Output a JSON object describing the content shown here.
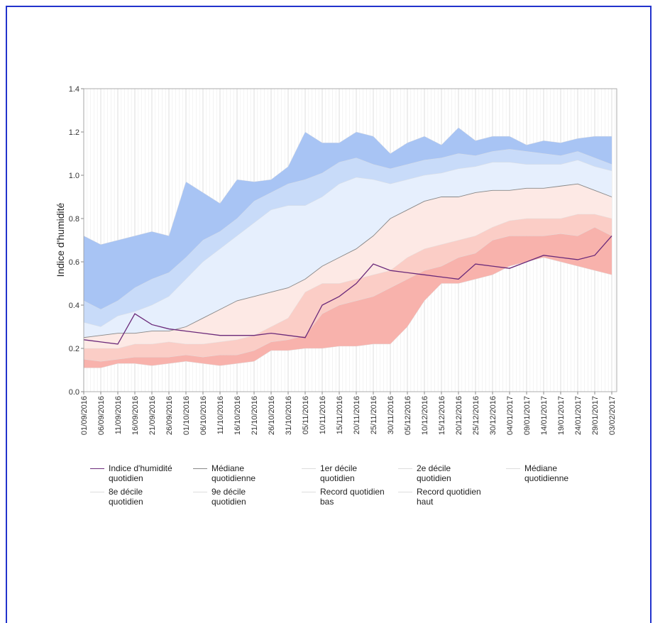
{
  "chart_data": {
    "type": "band-line",
    "y_label": "Indice d'humidité",
    "x": [
      "01/09/2016",
      "06/09/2016",
      "11/09/2016",
      "16/09/2016",
      "21/09/2016",
      "26/09/2016",
      "01/10/2016",
      "06/10/2016",
      "11/10/2016",
      "16/10/2016",
      "21/10/2016",
      "26/10/2016",
      "31/10/2016",
      "05/11/2016",
      "10/11/2016",
      "15/11/2016",
      "20/11/2016",
      "25/11/2016",
      "30/11/2016",
      "05/12/2016",
      "10/12/2016",
      "15/12/2016",
      "20/12/2016",
      "25/12/2016",
      "30/12/2016",
      "04/01/2017",
      "09/01/2017",
      "14/01/2017",
      "19/01/2017",
      "24/01/2017",
      "29/01/2017",
      "03/02/2017"
    ],
    "ylim": [
      0,
      1.4
    ],
    "yticks": [
      {
        "value": 0,
        "label": "0.0"
      },
      0.2,
      0.4,
      0.6,
      0.8,
      {
        "value": 1,
        "label": "1.0"
      },
      1.2,
      1.4
    ],
    "grid": true,
    "series": [
      {
        "name": "Indice d'humidité quotidien",
        "color": "#6b2a7a",
        "values": [
          0.24,
          0.23,
          0.22,
          0.36,
          0.31,
          0.29,
          0.28,
          0.27,
          0.26,
          0.26,
          0.26,
          0.27,
          0.26,
          0.25,
          0.4,
          0.44,
          0.5,
          0.59,
          0.56,
          0.55,
          0.54,
          0.53,
          0.52,
          0.59,
          0.58,
          0.57,
          0.6,
          0.63,
          0.62,
          0.61,
          0.63,
          0.72
        ]
      },
      {
        "name": "Médiane quotidienne",
        "color": "#888888",
        "values": [
          0.25,
          0.26,
          0.27,
          0.27,
          0.28,
          0.28,
          0.3,
          0.34,
          0.38,
          0.42,
          0.44,
          0.46,
          0.48,
          0.52,
          0.58,
          0.62,
          0.66,
          0.72,
          0.8,
          0.84,
          0.88,
          0.9,
          0.9,
          0.92,
          0.93,
          0.93,
          0.94,
          0.94,
          0.95,
          0.96,
          0.93,
          0.9
        ]
      },
      {
        "name": "1er décile quotidien",
        "color": "#dddddd",
        "fill": "#f8b2ac",
        "values": [
          0.15,
          0.14,
          0.15,
          0.16,
          0.16,
          0.16,
          0.17,
          0.16,
          0.17,
          0.17,
          0.19,
          0.23,
          0.24,
          0.26,
          0.36,
          0.4,
          0.42,
          0.44,
          0.48,
          0.52,
          0.56,
          0.58,
          0.62,
          0.64,
          0.7,
          0.72,
          0.72,
          0.72,
          0.73,
          0.72,
          0.76,
          0.72
        ]
      },
      {
        "name": "2e décile quotidien",
        "color": "#dddddd",
        "fill": "#fbcdc6",
        "values": [
          0.2,
          0.2,
          0.2,
          0.22,
          0.22,
          0.23,
          0.22,
          0.22,
          0.23,
          0.24,
          0.26,
          0.3,
          0.34,
          0.46,
          0.5,
          0.5,
          0.52,
          0.54,
          0.56,
          0.62,
          0.66,
          0.68,
          0.7,
          0.72,
          0.76,
          0.79,
          0.8,
          0.8,
          0.8,
          0.82,
          0.82,
          0.8
        ]
      },
      {
        "name": "Médiane quotidienne",
        "color": "#dddddd",
        "fill": "#fde9e5",
        "values": [
          0.25,
          0.26,
          0.27,
          0.27,
          0.28,
          0.28,
          0.3,
          0.34,
          0.38,
          0.42,
          0.44,
          0.46,
          0.48,
          0.52,
          0.58,
          0.62,
          0.66,
          0.72,
          0.8,
          0.84,
          0.88,
          0.9,
          0.9,
          0.92,
          0.93,
          0.93,
          0.94,
          0.94,
          0.95,
          0.96,
          0.93,
          0.9
        ]
      },
      {
        "name": "8e décile quotidien",
        "color": "#dddddd",
        "fill": "#e6effd",
        "values": [
          0.32,
          0.3,
          0.35,
          0.37,
          0.4,
          0.44,
          0.52,
          0.6,
          0.66,
          0.72,
          0.78,
          0.84,
          0.86,
          0.86,
          0.9,
          0.96,
          0.99,
          0.98,
          0.96,
          0.98,
          1.0,
          1.01,
          1.03,
          1.04,
          1.06,
          1.06,
          1.05,
          1.05,
          1.05,
          1.07,
          1.04,
          1.02
        ]
      },
      {
        "name": "9e décile quotidien",
        "color": "#dddddd",
        "fill": "#c8dbf9",
        "values": [
          0.42,
          0.38,
          0.42,
          0.48,
          0.52,
          0.55,
          0.62,
          0.7,
          0.74,
          0.8,
          0.88,
          0.92,
          0.96,
          0.98,
          1.01,
          1.06,
          1.08,
          1.05,
          1.03,
          1.05,
          1.07,
          1.08,
          1.1,
          1.09,
          1.11,
          1.12,
          1.11,
          1.1,
          1.09,
          1.11,
          1.08,
          1.05
        ]
      },
      {
        "name": "Record quotidien bas",
        "color": "#dddddd",
        "values": [
          0.11,
          0.11,
          0.13,
          0.13,
          0.12,
          0.13,
          0.14,
          0.13,
          0.12,
          0.13,
          0.14,
          0.19,
          0.19,
          0.2,
          0.2,
          0.21,
          0.21,
          0.22,
          0.22,
          0.3,
          0.42,
          0.5,
          0.5,
          0.52,
          0.54,
          0.58,
          0.6,
          0.62,
          0.6,
          0.58,
          0.56,
          0.54
        ]
      },
      {
        "name": "Record quotidien haut",
        "color": "#dddddd",
        "fill": "#a8c4f4",
        "values": [
          0.72,
          0.68,
          0.7,
          0.72,
          0.74,
          0.72,
          0.97,
          0.92,
          0.87,
          0.98,
          0.97,
          0.98,
          1.04,
          1.2,
          1.15,
          1.15,
          1.2,
          1.18,
          1.1,
          1.15,
          1.18,
          1.14,
          1.22,
          1.16,
          1.18,
          1.18,
          1.14,
          1.16,
          1.15,
          1.17,
          1.18,
          1.18
        ]
      }
    ]
  }
}
